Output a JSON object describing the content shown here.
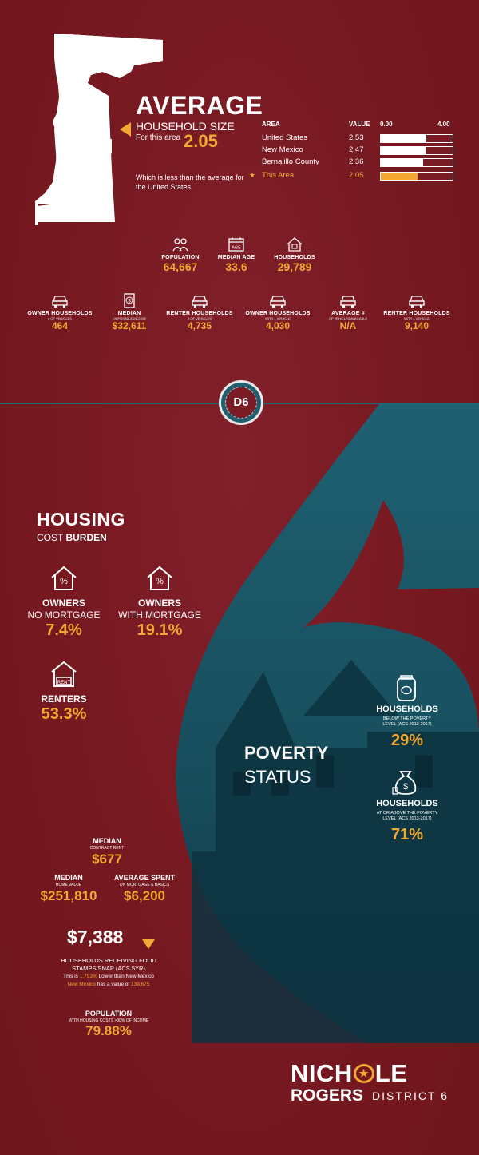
{
  "average": {
    "heading": "AVERAGE",
    "subheading": "HOUSEHOLD SIZE",
    "for_area_label": "For this area",
    "for_area_value": "2.05",
    "comparison_note": "Which is less than the average for the United States",
    "table": {
      "col_area": "AREA",
      "col_value": "VALUE",
      "scale_min": "0.00",
      "scale_max": "4.00",
      "rows": [
        {
          "area": "United States",
          "value": "2.53",
          "fraction": 0.6325
        },
        {
          "area": "New Mexico",
          "value": "2.47",
          "fraction": 0.6175
        },
        {
          "area": "Bernalillo County",
          "value": "2.36",
          "fraction": 0.59
        },
        {
          "area": "This Area",
          "value": "2.05",
          "fraction": 0.5125
        }
      ],
      "highlight_star": "★"
    }
  },
  "stats_row1": [
    {
      "label": "POPULATION",
      "sub": "",
      "value": "64,667",
      "icon": "people-icon"
    },
    {
      "label": "MEDIAN AGE",
      "sub": "",
      "value": "33.6",
      "icon": "age-calendar-icon",
      "icon_text": "AGE"
    },
    {
      "label": "HOUSEHOLDS",
      "sub": "",
      "value": "29,789",
      "icon": "house-icon"
    }
  ],
  "stats_row2": [
    {
      "label": "OWNER HOUSEHOLDS",
      "sub": "# OF VEHICLES",
      "value": "464",
      "icon": "car-icon"
    },
    {
      "label": "MEDIAN",
      "sub": "DISPOSABLE INCOME",
      "value": "$32,611",
      "icon": "money-document-icon"
    },
    {
      "label": "RENTER HOUSEHOLDS",
      "sub": "# OF VEHICLES",
      "value": "4,735",
      "icon": "car-icon"
    },
    {
      "label": "OWNER HOUSEHOLDS",
      "sub": "WITH 1 VEHICLE",
      "value": "4,030",
      "icon": "car-icon"
    },
    {
      "label": "AVERAGE #",
      "sub": "OF VEHICLES AVAILABLE",
      "value": "N/A",
      "icon": "car-icon"
    },
    {
      "label": "RENTER HOUSEHOLDS",
      "sub": "WITH 1 VEHICLE",
      "value": "9,140",
      "icon": "car-icon"
    }
  ],
  "badge": {
    "text": "D6"
  },
  "housing": {
    "title": "HOUSING",
    "subtitle_prefix": "COST ",
    "subtitle_bold": "BURDEN",
    "owners_no_mortgage": {
      "title": "OWNERS",
      "sub": "NO MORTGAGE",
      "value": "7.4%"
    },
    "owners_with_mortgage": {
      "title": "OWNERS",
      "sub": "WITH MORTGAGE",
      "value": "19.1%"
    },
    "renters": {
      "title": "RENTERS",
      "value": "53.3%",
      "icon_text": "RENT"
    }
  },
  "poverty": {
    "title": "POVERTY",
    "subtitle": "STATUS",
    "below": {
      "title": "HOUSEHOLDS",
      "sub": "BELOW THE POVERTY LEVEL (ACS 2013-2017)",
      "value": "29%"
    },
    "above": {
      "title": "HOUSEHOLDS",
      "sub": "AT OR ABOVE THE POVERTY LEVEL (ACS 2013-2017)",
      "value": "71%"
    }
  },
  "rent": {
    "median_contract": {
      "title": "MEDIAN",
      "sub": "CONTRACT RENT",
      "value": "$677"
    },
    "median_home": {
      "title": "MEDIAN",
      "sub": "HOME VALUE",
      "value": "$251,810"
    },
    "average_spent": {
      "title": "AVERAGE SPENT",
      "sub": "ON MORTGAGE & BASICS",
      "value": "$6,200"
    }
  },
  "snap": {
    "value": "$7,388",
    "label": "HOUSEHOLDS RECEIVING FOOD STAMPS/SNAP (ACS 5YR)",
    "line1_a": "This is ",
    "line1_pct": "1,793%",
    "line1_b": " Lower than New Mexico",
    "line2_a": "New Mexico",
    "line2_b": " has a value of ",
    "line2_c": "139,875"
  },
  "pop_housing": {
    "title": "POPULATION",
    "sub": "WITH HOUSING COSTS >30% OF INCOME",
    "value": "79.88%"
  },
  "brand": {
    "name_a": "NICH",
    "name_b": "LE",
    "name_line2": "ROGERS",
    "district": "DISTRICT 6"
  },
  "colors": {
    "background": "#7a1c26",
    "accent": "#f2a833",
    "teal": "#1f5f6e",
    "white": "#ffffff"
  }
}
